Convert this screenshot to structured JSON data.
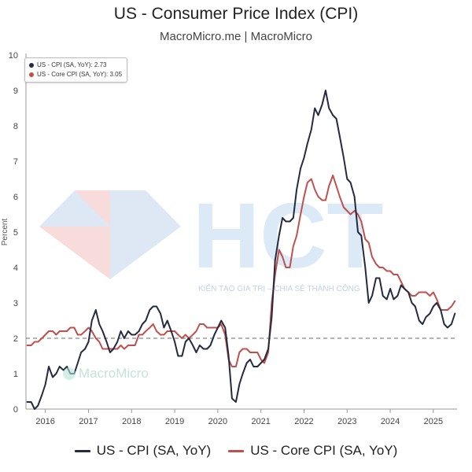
{
  "header": {
    "title": "US - Consumer Price Index (CPI)",
    "subtitle": "MacroMicro.me | MacroMicro"
  },
  "tooltip": {
    "rows": [
      {
        "label": "US - CPI (SA, YoY): 2.73",
        "color": "#252a3f"
      },
      {
        "label": "US - Core CPI (SA, YoY): 3.05",
        "color": "#c0504d"
      }
    ]
  },
  "legend": [
    {
      "label": "US - CPI (SA, YoY)",
      "color": "#252a3f"
    },
    {
      "label": "US - Core CPI (SA, YoY)",
      "color": "#c0504d"
    }
  ],
  "watermarks": {
    "brand_text": "HCT",
    "tagline": "KIẾN TẠO GIÁ TRỊ – CHIA SẺ THÀNH CÔNG",
    "small": "MacroMicro"
  },
  "colors": {
    "cpi": "#252a3f",
    "core": "#c0504d",
    "reference_line": "#888888",
    "grid": "#eeeeee"
  },
  "chart_data": {
    "type": "line",
    "title": "US - Consumer Price Index (CPI)",
    "subtitle": "MacroMicro.me | MacroMicro",
    "ylabel": "Percent",
    "xlabel": "",
    "xlim": [
      2015.55,
      2025.55
    ],
    "ylim": [
      0,
      10
    ],
    "yticks": [
      0,
      1,
      2,
      3,
      4,
      5,
      6,
      7,
      8,
      9,
      10
    ],
    "xticks": [
      2016,
      2017,
      2018,
      2019,
      2020,
      2021,
      2022,
      2023,
      2024,
      2025
    ],
    "reference_line": 2,
    "grid": false,
    "legend_position": "bottom",
    "series": [
      {
        "name": "US - CPI (SA, YoY)",
        "color": "#252a3f",
        "points": [
          [
            2015.58,
            0.2
          ],
          [
            2015.67,
            0.2
          ],
          [
            2015.75,
            0.0
          ],
          [
            2015.83,
            0.1
          ],
          [
            2015.92,
            0.4
          ],
          [
            2016.0,
            0.7
          ],
          [
            2016.08,
            1.2
          ],
          [
            2016.17,
            0.9
          ],
          [
            2016.25,
            1.0
          ],
          [
            2016.33,
            1.2
          ],
          [
            2016.42,
            1.1
          ],
          [
            2016.5,
            1.2
          ],
          [
            2016.58,
            1.0
          ],
          [
            2016.67,
            1.0
          ],
          [
            2016.75,
            1.3
          ],
          [
            2016.83,
            1.6
          ],
          [
            2016.92,
            1.7
          ],
          [
            2017.0,
            1.9
          ],
          [
            2017.08,
            2.5
          ],
          [
            2017.17,
            2.8
          ],
          [
            2017.25,
            2.4
          ],
          [
            2017.33,
            2.2
          ],
          [
            2017.42,
            1.9
          ],
          [
            2017.5,
            1.6
          ],
          [
            2017.58,
            1.7
          ],
          [
            2017.67,
            1.9
          ],
          [
            2017.75,
            2.2
          ],
          [
            2017.83,
            2.0
          ],
          [
            2017.92,
            2.2
          ],
          [
            2018.0,
            2.1
          ],
          [
            2018.08,
            2.1
          ],
          [
            2018.17,
            2.2
          ],
          [
            2018.25,
            2.4
          ],
          [
            2018.33,
            2.5
          ],
          [
            2018.42,
            2.8
          ],
          [
            2018.5,
            2.9
          ],
          [
            2018.58,
            2.9
          ],
          [
            2018.67,
            2.7
          ],
          [
            2018.75,
            2.3
          ],
          [
            2018.83,
            2.5
          ],
          [
            2018.92,
            2.2
          ],
          [
            2019.0,
            1.9
          ],
          [
            2019.08,
            1.5
          ],
          [
            2019.17,
            1.5
          ],
          [
            2019.25,
            1.9
          ],
          [
            2019.33,
            2.0
          ],
          [
            2019.42,
            1.8
          ],
          [
            2019.5,
            1.6
          ],
          [
            2019.58,
            1.8
          ],
          [
            2019.67,
            1.7
          ],
          [
            2019.75,
            1.7
          ],
          [
            2019.83,
            1.8
          ],
          [
            2019.92,
            2.1
          ],
          [
            2020.0,
            2.3
          ],
          [
            2020.08,
            2.5
          ],
          [
            2020.17,
            2.3
          ],
          [
            2020.25,
            1.5
          ],
          [
            2020.33,
            0.3
          ],
          [
            2020.42,
            0.2
          ],
          [
            2020.5,
            0.7
          ],
          [
            2020.58,
            1.0
          ],
          [
            2020.67,
            1.3
          ],
          [
            2020.75,
            1.4
          ],
          [
            2020.83,
            1.2
          ],
          [
            2020.92,
            1.2
          ],
          [
            2021.0,
            1.3
          ],
          [
            2021.08,
            1.4
          ],
          [
            2021.17,
            1.7
          ],
          [
            2021.25,
            2.6
          ],
          [
            2021.33,
            4.2
          ],
          [
            2021.42,
            4.9
          ],
          [
            2021.5,
            5.4
          ],
          [
            2021.58,
            5.3
          ],
          [
            2021.67,
            5.3
          ],
          [
            2021.75,
            5.4
          ],
          [
            2021.83,
            6.2
          ],
          [
            2021.92,
            6.8
          ],
          [
            2022.0,
            7.1
          ],
          [
            2022.08,
            7.5
          ],
          [
            2022.17,
            7.9
          ],
          [
            2022.25,
            8.5
          ],
          [
            2022.33,
            8.3
          ],
          [
            2022.42,
            8.6
          ],
          [
            2022.5,
            9.0
          ],
          [
            2022.58,
            8.5
          ],
          [
            2022.67,
            8.3
          ],
          [
            2022.75,
            8.2
          ],
          [
            2022.83,
            7.7
          ],
          [
            2022.92,
            7.1
          ],
          [
            2023.0,
            6.5
          ],
          [
            2023.08,
            6.4
          ],
          [
            2023.17,
            6.0
          ],
          [
            2023.25,
            5.0
          ],
          [
            2023.33,
            4.9
          ],
          [
            2023.42,
            4.0
          ],
          [
            2023.5,
            3.0
          ],
          [
            2023.58,
            3.2
          ],
          [
            2023.67,
            3.7
          ],
          [
            2023.75,
            3.7
          ],
          [
            2023.83,
            3.2
          ],
          [
            2023.92,
            3.1
          ],
          [
            2024.0,
            3.4
          ],
          [
            2024.08,
            3.1
          ],
          [
            2024.17,
            3.2
          ],
          [
            2024.25,
            3.5
          ],
          [
            2024.33,
            3.4
          ],
          [
            2024.42,
            3.3
          ],
          [
            2024.5,
            3.0
          ],
          [
            2024.58,
            2.9
          ],
          [
            2024.67,
            2.5
          ],
          [
            2024.75,
            2.4
          ],
          [
            2024.83,
            2.6
          ],
          [
            2024.92,
            2.7
          ],
          [
            2025.0,
            2.9
          ],
          [
            2025.08,
            3.0
          ],
          [
            2025.17,
            2.8
          ],
          [
            2025.25,
            2.4
          ],
          [
            2025.33,
            2.3
          ],
          [
            2025.42,
            2.4
          ],
          [
            2025.5,
            2.7
          ]
        ]
      },
      {
        "name": "US - Core CPI (SA, YoY)",
        "color": "#c0504d",
        "points": [
          [
            2015.58,
            1.8
          ],
          [
            2015.67,
            1.8
          ],
          [
            2015.75,
            1.9
          ],
          [
            2015.83,
            1.9
          ],
          [
            2015.92,
            2.0
          ],
          [
            2016.0,
            2.1
          ],
          [
            2016.08,
            2.2
          ],
          [
            2016.17,
            2.2
          ],
          [
            2016.25,
            2.1
          ],
          [
            2016.33,
            2.2
          ],
          [
            2016.42,
            2.2
          ],
          [
            2016.5,
            2.2
          ],
          [
            2016.58,
            2.3
          ],
          [
            2016.67,
            2.3
          ],
          [
            2016.75,
            2.1
          ],
          [
            2016.83,
            2.1
          ],
          [
            2016.92,
            2.2
          ],
          [
            2017.0,
            2.3
          ],
          [
            2017.08,
            2.2
          ],
          [
            2017.17,
            2.0
          ],
          [
            2017.25,
            1.9
          ],
          [
            2017.33,
            1.7
          ],
          [
            2017.42,
            1.7
          ],
          [
            2017.5,
            1.7
          ],
          [
            2017.58,
            1.7
          ],
          [
            2017.67,
            1.7
          ],
          [
            2017.75,
            1.8
          ],
          [
            2017.83,
            1.7
          ],
          [
            2017.92,
            1.8
          ],
          [
            2018.0,
            1.8
          ],
          [
            2018.08,
            1.8
          ],
          [
            2018.17,
            2.1
          ],
          [
            2018.25,
            2.1
          ],
          [
            2018.33,
            2.2
          ],
          [
            2018.42,
            2.3
          ],
          [
            2018.5,
            2.4
          ],
          [
            2018.58,
            2.2
          ],
          [
            2018.67,
            2.1
          ],
          [
            2018.75,
            2.1
          ],
          [
            2018.83,
            2.2
          ],
          [
            2018.92,
            2.2
          ],
          [
            2019.0,
            2.2
          ],
          [
            2019.08,
            2.1
          ],
          [
            2019.17,
            2.0
          ],
          [
            2019.25,
            2.1
          ],
          [
            2019.33,
            2.0
          ],
          [
            2019.42,
            2.1
          ],
          [
            2019.5,
            2.2
          ],
          [
            2019.58,
            2.4
          ],
          [
            2019.67,
            2.4
          ],
          [
            2019.75,
            2.3
          ],
          [
            2019.83,
            2.3
          ],
          [
            2019.92,
            2.3
          ],
          [
            2020.0,
            2.3
          ],
          [
            2020.08,
            2.4
          ],
          [
            2020.17,
            2.1
          ],
          [
            2020.25,
            1.4
          ],
          [
            2020.33,
            1.2
          ],
          [
            2020.42,
            1.2
          ],
          [
            2020.5,
            1.6
          ],
          [
            2020.58,
            1.7
          ],
          [
            2020.67,
            1.7
          ],
          [
            2020.75,
            1.6
          ],
          [
            2020.83,
            1.6
          ],
          [
            2020.92,
            1.6
          ],
          [
            2021.0,
            1.4
          ],
          [
            2021.08,
            1.3
          ],
          [
            2021.17,
            1.6
          ],
          [
            2021.25,
            3.0
          ],
          [
            2021.33,
            3.8
          ],
          [
            2021.42,
            4.5
          ],
          [
            2021.5,
            4.3
          ],
          [
            2021.58,
            4.0
          ],
          [
            2021.67,
            4.0
          ],
          [
            2021.75,
            4.6
          ],
          [
            2021.83,
            4.9
          ],
          [
            2021.92,
            5.5
          ],
          [
            2022.0,
            6.0
          ],
          [
            2022.08,
            6.4
          ],
          [
            2022.17,
            6.5
          ],
          [
            2022.25,
            6.2
          ],
          [
            2022.33,
            6.0
          ],
          [
            2022.42,
            5.9
          ],
          [
            2022.5,
            5.9
          ],
          [
            2022.58,
            6.3
          ],
          [
            2022.67,
            6.6
          ],
          [
            2022.75,
            6.3
          ],
          [
            2022.83,
            6.0
          ],
          [
            2022.92,
            5.7
          ],
          [
            2023.0,
            5.6
          ],
          [
            2023.08,
            5.5
          ],
          [
            2023.17,
            5.6
          ],
          [
            2023.25,
            5.5
          ],
          [
            2023.33,
            5.3
          ],
          [
            2023.42,
            4.8
          ],
          [
            2023.5,
            4.7
          ],
          [
            2023.58,
            4.3
          ],
          [
            2023.67,
            4.1
          ],
          [
            2023.75,
            4.0
          ],
          [
            2023.83,
            4.0
          ],
          [
            2023.92,
            3.9
          ],
          [
            2024.0,
            3.9
          ],
          [
            2024.08,
            3.8
          ],
          [
            2024.17,
            3.8
          ],
          [
            2024.25,
            3.6
          ],
          [
            2024.33,
            3.4
          ],
          [
            2024.42,
            3.3
          ],
          [
            2024.5,
            3.2
          ],
          [
            2024.58,
            3.2
          ],
          [
            2024.67,
            3.3
          ],
          [
            2024.75,
            3.3
          ],
          [
            2024.83,
            3.3
          ],
          [
            2024.92,
            3.2
          ],
          [
            2025.0,
            3.3
          ],
          [
            2025.08,
            3.1
          ],
          [
            2025.17,
            2.8
          ],
          [
            2025.25,
            2.8
          ],
          [
            2025.33,
            2.8
          ],
          [
            2025.42,
            2.9
          ],
          [
            2025.5,
            3.05
          ]
        ]
      }
    ]
  }
}
